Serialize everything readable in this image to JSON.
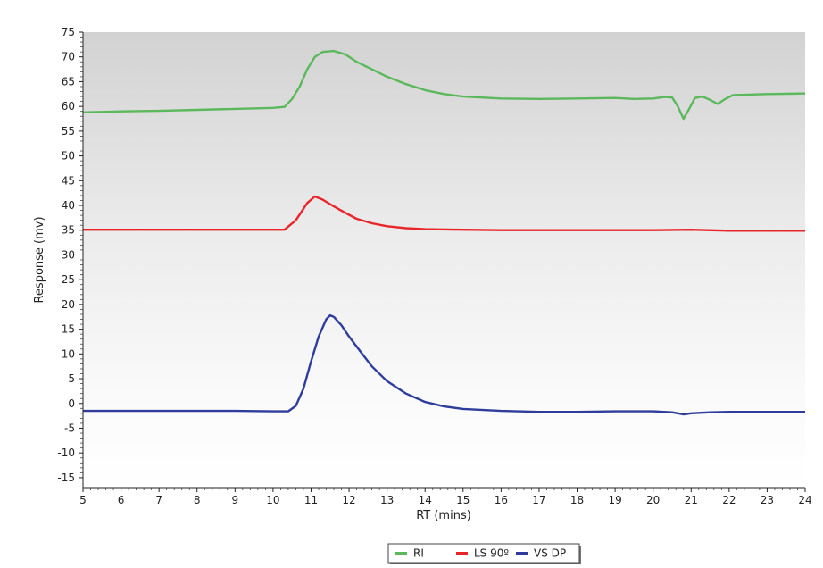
{
  "chart_data": {
    "type": "line",
    "title": "",
    "xlabel": "RT (mins)",
    "ylabel": "Response (mv)",
    "xlim": [
      5,
      24
    ],
    "ylim": [
      -17,
      75
    ],
    "x_ticks": [
      5,
      6,
      7,
      8,
      9,
      10,
      11,
      12,
      13,
      14,
      15,
      16,
      17,
      18,
      19,
      20,
      21,
      22,
      23,
      24
    ],
    "y_ticks": [
      75,
      70,
      65,
      60,
      55,
      50,
      45,
      40,
      35,
      30,
      25,
      20,
      15,
      10,
      5,
      0,
      -5,
      -10,
      -15
    ],
    "y_tick_labels": [
      "75",
      "70",
      "65",
      "60",
      "55",
      "50",
      "45",
      "40",
      "35",
      "30",
      "25",
      "20",
      "15",
      "10",
      "5",
      "0",
      "-5",
      "-10",
      "-15"
    ],
    "legend_position": "bottom-center",
    "grid": false,
    "background": "gradient light grey to white",
    "series": [
      {
        "name": "RI",
        "color": "#5cb85c",
        "x": [
          5,
          6,
          7,
          8,
          9,
          10,
          10.3,
          10.5,
          10.7,
          10.9,
          11.1,
          11.3,
          11.6,
          11.9,
          12.2,
          12.6,
          13,
          13.5,
          14,
          14.5,
          15,
          15.5,
          16,
          17,
          18,
          19,
          19.5,
          20,
          20.3,
          20.5,
          20.65,
          20.8,
          20.95,
          21.1,
          21.3,
          21.5,
          21.7,
          21.9,
          22.1,
          23,
          24
        ],
        "values": [
          58.8,
          59,
          59.1,
          59.3,
          59.5,
          59.7,
          59.9,
          61.5,
          64,
          67.5,
          70,
          71,
          71.2,
          70.5,
          69,
          67.5,
          66,
          64.5,
          63.3,
          62.5,
          62,
          61.8,
          61.6,
          61.5,
          61.6,
          61.7,
          61.5,
          61.6,
          61.9,
          61.8,
          60,
          57.5,
          59.5,
          61.7,
          62,
          61.3,
          60.5,
          61.5,
          62.3,
          62.5,
          62.6
        ]
      },
      {
        "name": "LS 90º",
        "color": "#e8262a",
        "x": [
          5,
          8,
          10,
          10.3,
          10.6,
          10.9,
          11.1,
          11.3,
          11.6,
          11.9,
          12.2,
          12.6,
          13,
          13.5,
          14,
          15,
          16,
          18,
          20,
          21,
          22,
          24
        ],
        "values": [
          35.1,
          35.1,
          35.1,
          35.1,
          37,
          40.5,
          41.8,
          41.2,
          39.8,
          38.5,
          37.3,
          36.4,
          35.8,
          35.4,
          35.2,
          35.1,
          35,
          35,
          35,
          35.1,
          34.9,
          34.9
        ]
      },
      {
        "name": "VS DP",
        "color": "#2e3d9c",
        "x": [
          5,
          7,
          9,
          10,
          10.4,
          10.6,
          10.8,
          11,
          11.2,
          11.4,
          11.5,
          11.6,
          11.8,
          12,
          12.3,
          12.6,
          13,
          13.5,
          14,
          14.5,
          15,
          16,
          17,
          18,
          19,
          20,
          20.5,
          20.8,
          21,
          21.5,
          22,
          23,
          24
        ],
        "values": [
          -1.5,
          -1.5,
          -1.5,
          -1.6,
          -1.6,
          -0.5,
          3,
          8.5,
          13.5,
          17,
          17.8,
          17.5,
          15.8,
          13.5,
          10.5,
          7.5,
          4.5,
          2,
          0.3,
          -0.6,
          -1.1,
          -1.5,
          -1.7,
          -1.7,
          -1.6,
          -1.6,
          -1.8,
          -2.2,
          -2,
          -1.8,
          -1.7,
          -1.7,
          -1.7
        ]
      }
    ]
  }
}
